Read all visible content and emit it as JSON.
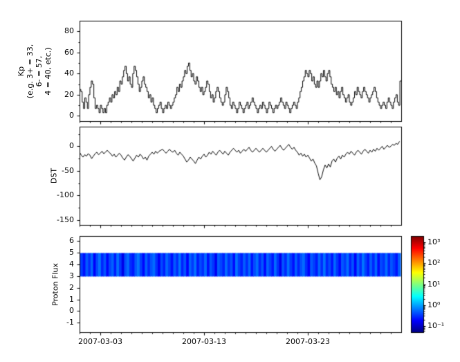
{
  "figure_background": "#ffffff",
  "frame_color": "#000000",
  "x_axis": {
    "start_date": "2007-03-01",
    "unit": "days since 2007-03-01",
    "minor_step_days": 1,
    "ticks": [
      {
        "t": 2,
        "label": "2007-03-03"
      },
      {
        "t": 12,
        "label": "2007-03-13"
      },
      {
        "t": 22,
        "label": "2007-03-23"
      }
    ]
  },
  "chart_data": [
    {
      "id": "kp",
      "type": "line",
      "style": "step",
      "title": "",
      "ylabel": "Kp\n(e.g. 3+ = 33,\n6- = 57,\n4 = 40, etc.)",
      "ylim": [
        -5,
        90
      ],
      "yticks": [
        0,
        20,
        40,
        60,
        80
      ],
      "y_minor_step": 10,
      "xlim": [
        0,
        31
      ],
      "sample_hours": 3,
      "line_color": "#000000",
      "values": [
        25,
        23,
        13,
        7,
        17,
        13,
        7,
        20,
        27,
        33,
        30,
        17,
        7,
        10,
        7,
        3,
        10,
        7,
        3,
        7,
        3,
        10,
        13,
        17,
        13,
        20,
        17,
        23,
        20,
        27,
        23,
        33,
        30,
        37,
        43,
        47,
        40,
        33,
        37,
        30,
        27,
        40,
        47,
        43,
        37,
        30,
        23,
        27,
        33,
        37,
        30,
        27,
        23,
        17,
        20,
        13,
        17,
        10,
        7,
        3,
        7,
        10,
        13,
        7,
        3,
        7,
        10,
        7,
        13,
        10,
        7,
        10,
        13,
        17,
        20,
        27,
        23,
        30,
        27,
        33,
        37,
        43,
        40,
        47,
        50,
        43,
        37,
        40,
        33,
        30,
        37,
        33,
        27,
        23,
        27,
        20,
        23,
        27,
        33,
        30,
        23,
        17,
        20,
        13,
        17,
        23,
        27,
        23,
        17,
        13,
        10,
        13,
        20,
        27,
        23,
        17,
        10,
        7,
        13,
        10,
        7,
        3,
        7,
        13,
        10,
        7,
        3,
        7,
        10,
        13,
        7,
        10,
        13,
        17,
        13,
        10,
        7,
        3,
        7,
        10,
        7,
        13,
        10,
        7,
        3,
        7,
        13,
        10,
        7,
        3,
        7,
        10,
        7,
        10,
        13,
        17,
        13,
        10,
        7,
        13,
        10,
        7,
        3,
        7,
        10,
        13,
        10,
        7,
        13,
        17,
        23,
        27,
        33,
        37,
        43,
        40,
        37,
        43,
        40,
        33,
        37,
        30,
        27,
        33,
        27,
        33,
        40,
        37,
        43,
        37,
        33,
        40,
        43,
        37,
        30,
        27,
        23,
        27,
        20,
        23,
        17,
        23,
        27,
        20,
        17,
        13,
        17,
        20,
        13,
        10,
        13,
        17,
        23,
        20,
        27,
        23,
        20,
        17,
        23,
        27,
        23,
        20,
        17,
        13,
        17,
        20,
        23,
        27,
        23,
        17,
        13,
        10,
        7,
        10,
        13,
        10,
        7,
        13,
        17,
        13,
        10,
        7,
        13,
        17,
        20,
        13,
        10,
        33
      ]
    },
    {
      "id": "dst",
      "type": "line",
      "style": "line",
      "title": "",
      "ylabel": "DST",
      "ylim": [
        -160,
        40
      ],
      "yticks": [
        0,
        -50,
        -100,
        -150
      ],
      "y_minor_step": 25,
      "xlim": [
        0,
        31
      ],
      "sample_hours": 4,
      "line_color": "#000000",
      "values": [
        -12,
        -18,
        -22,
        -17,
        -20,
        -15,
        -18,
        -25,
        -20,
        -15,
        -12,
        -17,
        -14,
        -10,
        -15,
        -12,
        -8,
        -12,
        -15,
        -20,
        -16,
        -22,
        -18,
        -14,
        -18,
        -24,
        -28,
        -22,
        -17,
        -20,
        -25,
        -30,
        -24,
        -18,
        -22,
        -16,
        -20,
        -26,
        -22,
        -28,
        -20,
        -16,
        -12,
        -16,
        -10,
        -14,
        -10,
        -8,
        -6,
        -10,
        -14,
        -10,
        -6,
        -10,
        -12,
        -8,
        -14,
        -18,
        -12,
        -16,
        -20,
        -26,
        -32,
        -28,
        -22,
        -26,
        -30,
        -35,
        -28,
        -22,
        -26,
        -20,
        -16,
        -22,
        -18,
        -12,
        -16,
        -10,
        -14,
        -18,
        -12,
        -8,
        -12,
        -16,
        -10,
        -14,
        -18,
        -12,
        -8,
        -4,
        -8,
        -12,
        -8,
        -14,
        -10,
        -6,
        -10,
        -6,
        -2,
        -8,
        -12,
        -8,
        -4,
        -8,
        -12,
        -8,
        -4,
        -8,
        -12,
        -8,
        -4,
        0,
        -6,
        -10,
        -6,
        -2,
        2,
        -4,
        -8,
        -4,
        0,
        4,
        -2,
        -6,
        -2,
        -8,
        -12,
        -18,
        -14,
        -20,
        -16,
        -22,
        -18,
        -24,
        -30,
        -26,
        -34,
        -40,
        -55,
        -68,
        -62,
        -48,
        -38,
        -44,
        -36,
        -42,
        -30,
        -26,
        -32,
        -24,
        -20,
        -26,
        -18,
        -22,
        -16,
        -12,
        -16,
        -10,
        -14,
        -18,
        -12,
        -8,
        -12,
        -16,
        -10,
        -6,
        -10,
        -14,
        -8,
        -12,
        -6,
        -10,
        -4,
        -8,
        -4,
        0,
        -6,
        -2,
        2,
        -2,
        0,
        4,
        2,
        6,
        4,
        10
      ]
    },
    {
      "id": "flux",
      "type": "heatmap",
      "title": "",
      "ylabel": "Proton Flux",
      "ylim": [
        -1.8,
        6.4
      ],
      "yticks": [
        6,
        5,
        4,
        3,
        2,
        1,
        0,
        -1
      ],
      "xlim": [
        0,
        31
      ],
      "band_y": [
        2.95,
        4.95
      ],
      "colormap": "jet",
      "color_scale": "log",
      "clim": [
        0.05,
        2000
      ],
      "column_values": [
        0.35,
        0.22,
        0.48,
        0.3,
        0.55,
        0.18,
        0.4,
        0.62,
        0.28,
        0.45,
        0.2,
        0.38,
        0.52,
        0.25,
        0.6,
        0.33,
        0.15,
        0.42,
        0.57,
        0.3,
        0.24,
        0.47,
        0.65,
        0.35,
        0.2,
        0.5,
        0.28,
        0.44,
        0.58,
        0.32,
        0.18,
        0.4,
        0.26,
        0.55,
        0.36,
        0.22,
        0.48,
        0.3,
        0.62,
        0.27,
        0.45,
        0.19,
        0.52,
        0.34,
        0.6,
        0.25,
        0.41,
        0.3,
        0.56,
        0.22,
        0.47,
        0.33,
        0.17,
        0.5,
        0.38,
        0.27,
        0.58,
        0.31,
        0.44,
        0.21,
        0.63,
        0.35,
        0.26,
        0.49,
        0.3,
        0.55,
        0.23,
        0.42,
        0.6,
        0.28,
        0.46,
        0.2,
        0.53,
        0.37,
        0.24,
        0.58,
        0.32,
        0.16,
        0.45,
        0.29,
        0.61,
        0.34,
        0.22,
        0.5,
        0.27,
        0.43,
        0.57,
        0.31,
        0.19,
        0.48,
        0.36,
        0.25,
        0.54,
        0.3,
        0.62,
        0.28,
        0.41,
        0.23,
        0.56,
        0.33,
        0.2,
        0.47,
        0.35,
        0.59,
        0.26,
        0.44,
        0.18,
        0.51,
        0.3,
        0.64,
        0.37,
        0.24,
        0.49,
        0.28,
        0.55,
        0.21,
        0.4,
        0.32,
        0.58,
        0.27,
        0.46,
        0.34,
        0.23,
        0.52
      ],
      "colorbar": {
        "position": "right",
        "tick_labels": [
          "10³",
          "10²",
          "10¹",
          "10⁰",
          "10⁻¹"
        ],
        "tick_values": [
          1000,
          100,
          10,
          1,
          0.1
        ]
      }
    }
  ]
}
